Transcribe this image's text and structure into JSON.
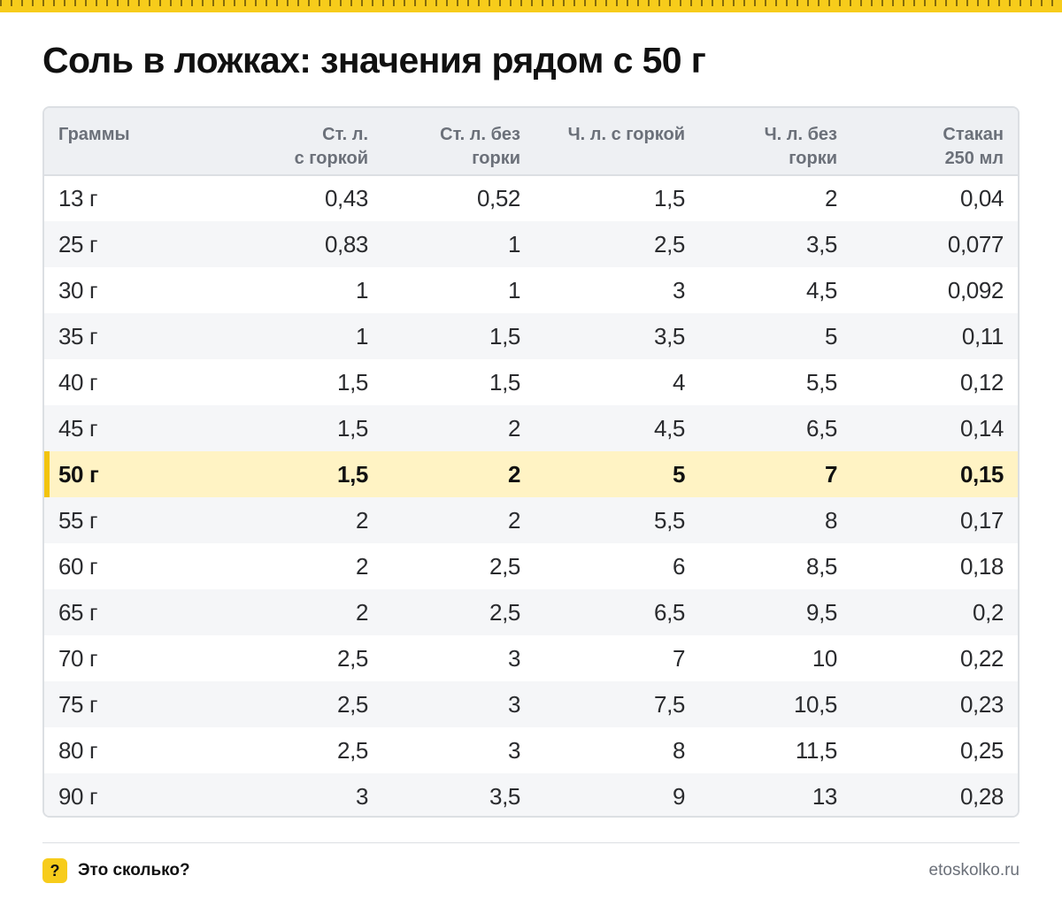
{
  "title": "Соль в ложках: значения рядом с 50 г",
  "colors": {
    "accent": "#f7cc1b",
    "highlight_row": "#fff3c4",
    "highlight_bar": "#f2c40f",
    "header_bg": "#eef0f3",
    "stripe": "#f5f6f8"
  },
  "table": {
    "headers": [
      {
        "line1": "Граммы",
        "line2": ""
      },
      {
        "line1": "Ст. л.",
        "line2": "с горкой"
      },
      {
        "line1": "Ст. л. без",
        "line2": "горки"
      },
      {
        "line1": "Ч. л. с горкой",
        "line2": ""
      },
      {
        "line1": "Ч. л. без",
        "line2": "горки"
      },
      {
        "line1": "Стакан",
        "line2": "250 мл"
      }
    ],
    "highlighted_row": 6,
    "rows": [
      [
        "13 г",
        "0,43",
        "0,52",
        "1,5",
        "2",
        "0,04"
      ],
      [
        "25 г",
        "0,83",
        "1",
        "2,5",
        "3,5",
        "0,077"
      ],
      [
        "30 г",
        "1",
        "1",
        "3",
        "4,5",
        "0,092"
      ],
      [
        "35 г",
        "1",
        "1,5",
        "3,5",
        "5",
        "0,11"
      ],
      [
        "40 г",
        "1,5",
        "1,5",
        "4",
        "5,5",
        "0,12"
      ],
      [
        "45 г",
        "1,5",
        "2",
        "4,5",
        "6,5",
        "0,14"
      ],
      [
        "50 г",
        "1,5",
        "2",
        "5",
        "7",
        "0,15"
      ],
      [
        "55 г",
        "2",
        "2",
        "5,5",
        "8",
        "0,17"
      ],
      [
        "60 г",
        "2",
        "2,5",
        "6",
        "8,5",
        "0,18"
      ],
      [
        "65 г",
        "2",
        "2,5",
        "6,5",
        "9,5",
        "0,2"
      ],
      [
        "70 г",
        "2,5",
        "3",
        "7",
        "10",
        "0,22"
      ],
      [
        "75 г",
        "2,5",
        "3",
        "7,5",
        "10,5",
        "0,23"
      ],
      [
        "80 г",
        "2,5",
        "3",
        "8",
        "11,5",
        "0,25"
      ],
      [
        "90 г",
        "3",
        "3,5",
        "9",
        "13",
        "0,28"
      ]
    ]
  },
  "footer": {
    "icon": "question-mark-icon",
    "icon_glyph": "?",
    "brand": "Это сколько?",
    "site": "etoskolko.ru"
  }
}
